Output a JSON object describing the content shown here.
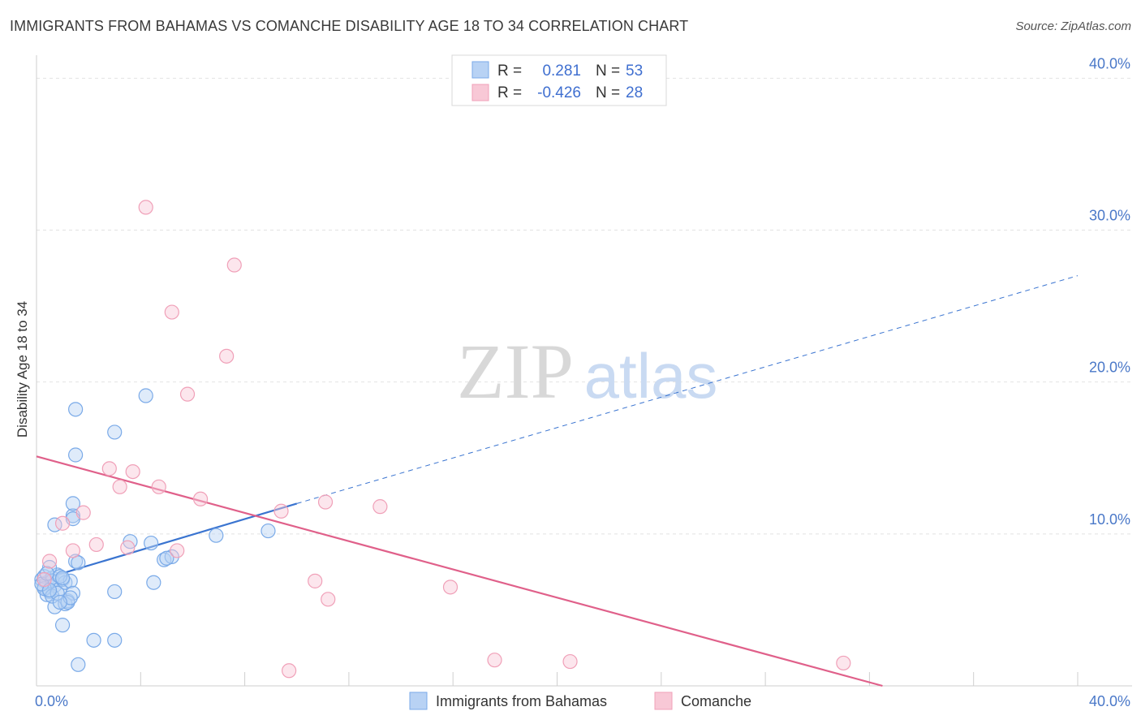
{
  "chart_data": {
    "type": "scatter",
    "title": "IMMIGRANTS FROM BAHAMAS VS COMANCHE DISABILITY AGE 18 TO 34 CORRELATION CHART",
    "source": "Source: ZipAtlas.com",
    "xlabel": "",
    "ylabel": "Disability Age 18 to 34",
    "xlim": [
      0,
      40
    ],
    "ylim": [
      0,
      41
    ],
    "x_tick_labels": [
      "0.0%",
      "40.0%"
    ],
    "y_ticks": [
      10,
      20,
      30,
      40
    ],
    "y_tick_labels": [
      "10.0%",
      "20.0%",
      "30.0%",
      "40.0%"
    ],
    "grid": true,
    "watermark": {
      "part1": "ZIP",
      "part2": "atlas"
    },
    "legend": {
      "r_label": "R =",
      "n_label": "N =",
      "entries": [
        {
          "r": "0.281",
          "n": "53"
        },
        {
          "r": "-0.426",
          "n": "28"
        }
      ]
    },
    "series": [
      {
        "name": "Immigrants from Bahamas",
        "color": "#7aaae8",
        "fill": "#b8d2f4",
        "line_color": "#3a74d0",
        "trend": {
          "x0": 0.0,
          "y0": 6.9,
          "x1": 10.0,
          "y1": 12.0,
          "x_dash_end": 40.0,
          "y_dash_end": 27.0
        },
        "points": [
          [
            0.2,
            7.0
          ],
          [
            0.3,
            6.5
          ],
          [
            0.4,
            6.8
          ],
          [
            0.3,
            7.2
          ],
          [
            0.5,
            6.2
          ],
          [
            0.6,
            7.1
          ],
          [
            0.4,
            6.0
          ],
          [
            0.7,
            6.6
          ],
          [
            0.8,
            7.3
          ],
          [
            0.5,
            7.8
          ],
          [
            0.6,
            6.9
          ],
          [
            0.9,
            6.4
          ],
          [
            1.0,
            7.0
          ],
          [
            0.7,
            5.2
          ],
          [
            1.1,
            6.8
          ],
          [
            1.2,
            5.6
          ],
          [
            1.1,
            5.4
          ],
          [
            1.3,
            6.9
          ],
          [
            1.4,
            6.1
          ],
          [
            1.5,
            8.2
          ],
          [
            1.6,
            8.1
          ],
          [
            1.4,
            11.2
          ],
          [
            1.4,
            11.0
          ],
          [
            1.4,
            12.0
          ],
          [
            1.5,
            15.2
          ],
          [
            1.5,
            18.2
          ],
          [
            0.7,
            10.6
          ],
          [
            1.0,
            4.0
          ],
          [
            2.2,
            3.0
          ],
          [
            3.0,
            3.0
          ],
          [
            1.6,
            1.4
          ],
          [
            3.0,
            16.7
          ],
          [
            4.2,
            19.1
          ],
          [
            3.0,
            6.2
          ],
          [
            3.6,
            9.5
          ],
          [
            4.4,
            9.4
          ],
          [
            4.5,
            6.8
          ],
          [
            4.9,
            8.3
          ],
          [
            5.2,
            8.5
          ],
          [
            5.0,
            8.4
          ],
          [
            6.9,
            9.9
          ],
          [
            8.9,
            10.2
          ],
          [
            0.3,
            6.4
          ],
          [
            0.2,
            6.7
          ],
          [
            0.6,
            5.9
          ],
          [
            0.9,
            7.2
          ],
          [
            1.2,
            5.5
          ],
          [
            0.4,
            7.4
          ],
          [
            0.8,
            6.1
          ],
          [
            1.0,
            7.1
          ],
          [
            1.3,
            5.8
          ],
          [
            0.5,
            6.3
          ],
          [
            0.9,
            5.5
          ]
        ]
      },
      {
        "name": "Comanche",
        "color": "#f0a0b8",
        "fill": "#f8c8d6",
        "line_color": "#e0608a",
        "trend": {
          "x0": 0.0,
          "y0": 15.1,
          "x1": 32.5,
          "y1": 0.0
        },
        "points": [
          [
            4.2,
            31.5
          ],
          [
            7.6,
            27.7
          ],
          [
            5.2,
            24.6
          ],
          [
            7.3,
            21.7
          ],
          [
            5.8,
            19.2
          ],
          [
            2.8,
            14.3
          ],
          [
            3.7,
            14.1
          ],
          [
            3.2,
            13.1
          ],
          [
            4.7,
            13.1
          ],
          [
            6.3,
            12.3
          ],
          [
            11.1,
            12.1
          ],
          [
            13.2,
            11.8
          ],
          [
            9.4,
            11.5
          ],
          [
            1.8,
            11.4
          ],
          [
            1.0,
            10.7
          ],
          [
            2.3,
            9.3
          ],
          [
            3.5,
            9.1
          ],
          [
            1.4,
            8.9
          ],
          [
            5.4,
            8.9
          ],
          [
            0.5,
            8.2
          ],
          [
            10.7,
            6.9
          ],
          [
            15.9,
            6.5
          ],
          [
            11.2,
            5.7
          ],
          [
            17.6,
            1.7
          ],
          [
            20.5,
            1.6
          ],
          [
            31.0,
            1.5
          ],
          [
            9.7,
            1.0
          ],
          [
            0.3,
            7.0
          ]
        ]
      }
    ]
  }
}
